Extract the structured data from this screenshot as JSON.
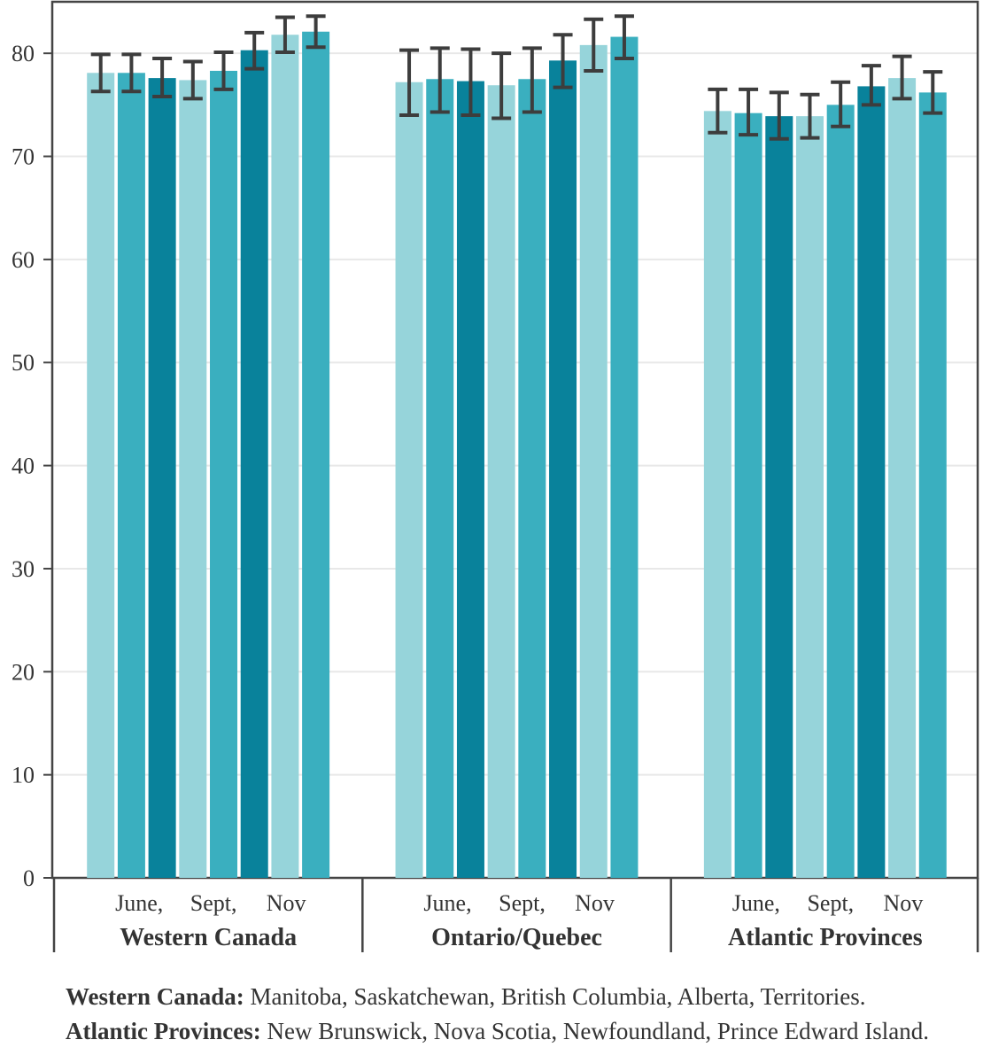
{
  "chart_data": {
    "type": "bar",
    "ylim": [
      0,
      85
    ],
    "yticks": [
      0,
      10,
      20,
      30,
      40,
      50,
      60,
      70,
      80
    ],
    "grid": true,
    "sub_labels": [
      "June,",
      "Sept,",
      "Nov"
    ],
    "groups": [
      {
        "name": "Western Canada",
        "values": [
          78.1,
          78.1,
          77.6,
          77.4,
          78.3,
          80.3,
          81.8,
          82.1
        ],
        "err_low": [
          76.3,
          76.3,
          75.8,
          75.6,
          76.5,
          78.5,
          80.1,
          80.6
        ],
        "err_high": [
          79.9,
          79.9,
          79.5,
          79.2,
          80.1,
          82.0,
          83.5,
          83.6
        ]
      },
      {
        "name": "Ontario/Quebec",
        "values": [
          77.2,
          77.5,
          77.3,
          76.9,
          77.5,
          79.3,
          80.8,
          81.6
        ],
        "err_low": [
          74.0,
          74.3,
          74.0,
          73.7,
          74.3,
          76.7,
          78.3,
          79.5
        ],
        "err_high": [
          80.3,
          80.5,
          80.4,
          80.0,
          80.5,
          81.8,
          83.3,
          83.6
        ]
      },
      {
        "name": "Atlantic Provinces",
        "values": [
          74.4,
          74.2,
          73.9,
          73.9,
          75.0,
          76.8,
          77.6,
          76.2
        ],
        "err_low": [
          72.3,
          72.1,
          71.7,
          71.8,
          72.9,
          75.0,
          75.6,
          74.2
        ],
        "err_high": [
          76.5,
          76.5,
          76.2,
          76.0,
          77.2,
          78.8,
          79.7,
          78.2
        ]
      }
    ],
    "bar_colors": [
      "#96d4da",
      "#3aafbf",
      "#09829b",
      "#96d4da",
      "#3aafbf",
      "#09829b",
      "#96d4da",
      "#3aafbf"
    ]
  },
  "footnotes": [
    {
      "term": "Western Canada:",
      "text": " Manitoba, Saskatchewan, British Columbia, Alberta, Territories."
    },
    {
      "term": "Atlantic Provinces:",
      "text": " New Brunswick, Nova Scotia, Newfoundland, Prince Edward Island."
    }
  ],
  "colors": {
    "axis": "#444444",
    "grid": "#e8e8e8",
    "error_bar": "#3d3d3d"
  }
}
